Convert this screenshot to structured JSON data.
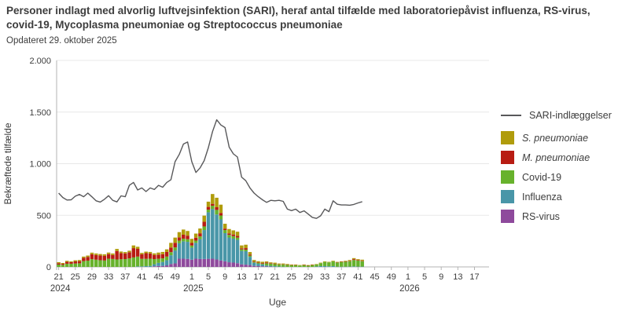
{
  "title": "Personer indlagt med alvorlig luftvejsinfektion (SARI), heraf antal tilfælde med laboratoriepåvist influenza, RS-virus, covid-19, Mycoplasma pneumoniae og Streptococcus pneumoniae",
  "subtitle": "Opdateret 29. oktober 2025",
  "colors": {
    "text": "#3d3d3d",
    "grid": "#e8e8e8",
    "axis": "#b3b3b3",
    "line": "#58585a",
    "s_pneumoniae": "#b09c0c",
    "m_pneumoniae": "#b81c13",
    "covid": "#67b22c",
    "influenza": "#4996a8",
    "rs_virus": "#8e4a9c"
  },
  "legend": {
    "line_label": "SARI-indlæggelser",
    "items": [
      {
        "label": "S. pneumoniae",
        "color": "#b09c0c",
        "italic": true
      },
      {
        "label": "M. pneumoniae",
        "color": "#b81c13",
        "italic": true
      },
      {
        "label": "Covid-19",
        "color": "#67b22c",
        "italic": false
      },
      {
        "label": "Influenza",
        "color": "#4996a8",
        "italic": false
      },
      {
        "label": "RS-virus",
        "color": "#8e4a9c",
        "italic": false
      }
    ]
  },
  "chart_data": {
    "type": "combo",
    "subtype": "stacked-bars-with-line",
    "x_axis": {
      "label": "Uge",
      "total_week_slots": 104,
      "first_week": "2024-W21",
      "last_data_week": "2025-W42",
      "tick_labels": [
        "21",
        "25",
        "29",
        "33",
        "37",
        "41",
        "45",
        "49",
        "1",
        "5",
        "9",
        "13",
        "17",
        "21",
        "25",
        "29",
        "33",
        "37",
        "41",
        "45",
        "49",
        "1",
        "5",
        "9",
        "13",
        "17"
      ],
      "tick_indices": [
        0,
        4,
        8,
        12,
        16,
        20,
        24,
        28,
        32,
        36,
        40,
        44,
        48,
        52,
        56,
        60,
        64,
        68,
        72,
        76,
        80,
        84,
        88,
        92,
        96,
        100
      ],
      "year_labels": [
        {
          "text": "2024",
          "index": 0
        },
        {
          "text": "2025",
          "index": 32
        },
        {
          "text": "2026",
          "index": 84
        }
      ]
    },
    "y_axis": {
      "label": "Bekræftede tilfælde",
      "max": 2000,
      "tick_values": [
        0,
        500,
        1000,
        1500,
        2000
      ],
      "tick_labels": [
        "0",
        "500",
        "1.000",
        "1.500",
        "2.000"
      ]
    },
    "line_series": {
      "name": "SARI-indlæggelser",
      "color": "#58585a",
      "values": [
        715,
        672,
        648,
        650,
        685,
        702,
        680,
        715,
        678,
        640,
        628,
        655,
        690,
        645,
        630,
        688,
        680,
        790,
        818,
        745,
        765,
        730,
        765,
        750,
        790,
        772,
        818,
        845,
        1020,
        1090,
        1190,
        1210,
        1020,
        915,
        960,
        1030,
        1155,
        1310,
        1425,
        1375,
        1350,
        1160,
        1095,
        1065,
        870,
        835,
        765,
        715,
        680,
        650,
        625,
        645,
        640,
        645,
        635,
        560,
        545,
        560,
        527,
        543,
        512,
        480,
        470,
        495,
        560,
        535,
        640,
        607,
        600,
        600,
        598,
        605,
        620,
        632
      ]
    },
    "bar_series": [
      {
        "name": "RS-virus",
        "color": "#8e4a9c",
        "values": [
          0,
          0,
          0,
          0,
          0,
          0,
          0,
          0,
          0,
          0,
          0,
          0,
          0,
          0,
          0,
          0,
          0,
          0,
          0,
          0,
          0,
          0,
          0,
          6,
          9,
          10,
          15,
          28,
          34,
          80,
          80,
          78,
          70,
          80,
          77,
          77,
          79,
          80,
          72,
          62,
          55,
          45,
          42,
          36,
          25,
          22,
          18,
          10,
          8,
          6,
          4,
          3,
          0,
          0,
          0,
          0,
          0,
          0,
          0,
          0,
          0,
          0,
          0,
          0,
          0,
          0,
          0,
          0,
          0,
          0,
          0,
          0,
          0,
          0
        ]
      },
      {
        "name": "Influenza",
        "color": "#4996a8",
        "values": [
          0,
          0,
          0,
          0,
          0,
          0,
          0,
          0,
          0,
          0,
          0,
          0,
          0,
          0,
          0,
          0,
          0,
          0,
          0,
          5,
          5,
          8,
          10,
          20,
          30,
          38,
          50,
          85,
          125,
          149,
          168,
          165,
          117,
          153,
          192,
          280,
          450,
          480,
          436,
          398,
          272,
          240,
          232,
          226,
          130,
          130,
          80,
          30,
          22,
          18,
          10,
          8,
          7,
          4,
          2,
          0,
          0,
          0,
          0,
          0,
          0,
          0,
          4,
          8,
          8,
          6,
          8,
          2,
          2,
          2,
          3,
          5,
          3,
          3
        ]
      },
      {
        "name": "Covid-19",
        "color": "#67b22c",
        "values": [
          23,
          20,
          31,
          31,
          33,
          35,
          56,
          61,
          75,
          70,
          65,
          62,
          80,
          77,
          72,
          74,
          76,
          82,
          92,
          95,
          73,
          70,
          70,
          50,
          40,
          35,
          35,
          30,
          30,
          26,
          26,
          25,
          20,
          22,
          26,
          35,
          26,
          33,
          44,
          38,
          30,
          25,
          24,
          22,
          15,
          15,
          12,
          8,
          8,
          8,
          21,
          20,
          20,
          18,
          20,
          20,
          16,
          16,
          14,
          16,
          13,
          17,
          20,
          28,
          40,
          38,
          45,
          40,
          45,
          48,
          52,
          62,
          58,
          52
        ]
      },
      {
        "name": "M. pneumoniae",
        "color": "#b81c13",
        "values": [
          13,
          10,
          18,
          15,
          20,
          21,
          31,
          36,
          48,
          45,
          45,
          45,
          44,
          38,
          82,
          60,
          55,
          60,
          90,
          75,
          45,
          55,
          50,
          40,
          40,
          40,
          45,
          45,
          45,
          31,
          38,
          35,
          25,
          28,
          31,
          45,
          26,
          18,
          26,
          25,
          14,
          15,
          16,
          16,
          10,
          15,
          10,
          6,
          5,
          6,
          8,
          5,
          4,
          3,
          3,
          2,
          2,
          2,
          0,
          3,
          2,
          2,
          0,
          0,
          0,
          0,
          0,
          2,
          2,
          3,
          4,
          8,
          5,
          4
        ]
      },
      {
        "name": "S. pneumoniae",
        "color": "#b09c0c",
        "values": [
          10,
          8,
          10,
          8,
          11,
          11,
          13,
          13,
          15,
          15,
          15,
          15,
          15,
          15,
          20,
          15,
          13,
          15,
          26,
          20,
          13,
          15,
          15,
          15,
          20,
          22,
          25,
          45,
          50,
          51,
          50,
          45,
          40,
          40,
          46,
          60,
          51,
          95,
          92,
          80,
          47,
          42,
          40,
          41,
          28,
          33,
          24,
          13,
          12,
          12,
          10,
          8,
          10,
          8,
          8,
          6,
          5,
          5,
          4,
          4,
          3,
          4,
          4,
          5,
          6,
          5,
          6,
          5,
          5,
          6,
          8,
          10,
          9,
          11
        ]
      }
    ]
  }
}
